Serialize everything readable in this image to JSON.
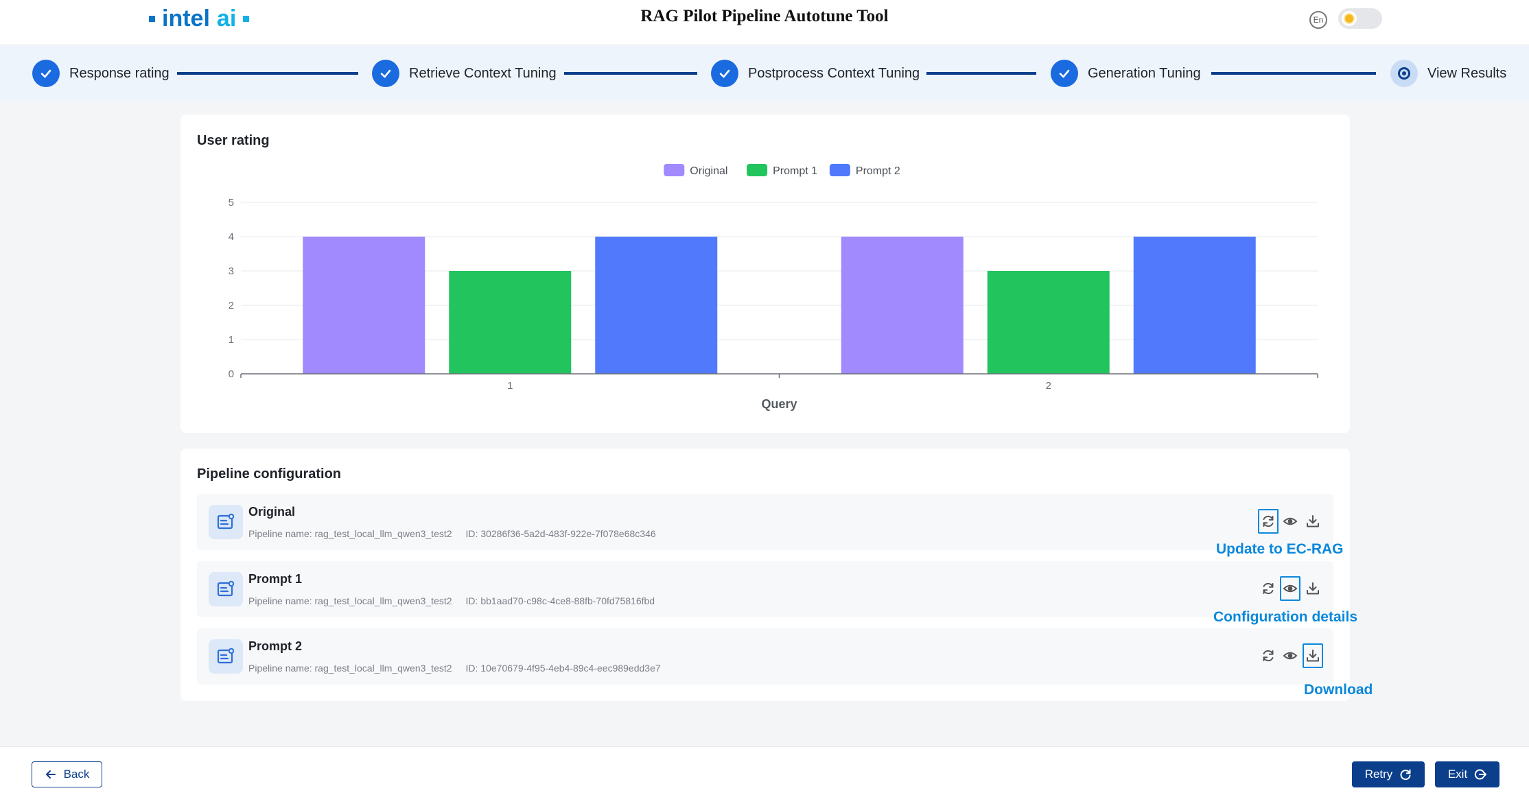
{
  "header": {
    "logo_text_1": "intel",
    "logo_text_2": "ai",
    "title": "RAG Pilot Pipeline Autotune Tool",
    "lang_label": "En"
  },
  "stepper": {
    "steps": [
      {
        "label": "Response rating",
        "status": "done"
      },
      {
        "label": "Retrieve Context Tuning",
        "status": "done"
      },
      {
        "label": "Postprocess Context Tuning",
        "status": "done"
      },
      {
        "label": "Generation Tuning",
        "status": "done"
      },
      {
        "label": "View Results",
        "status": "current"
      }
    ]
  },
  "rating_card": {
    "title": "User rating"
  },
  "chart_data": {
    "type": "bar",
    "categories": [
      "1",
      "2"
    ],
    "series": [
      {
        "name": "Original",
        "values": [
          4,
          4
        ],
        "color": "#a18afd"
      },
      {
        "name": "Prompt 1",
        "values": [
          3,
          3
        ],
        "color": "#22c45e"
      },
      {
        "name": "Prompt 2",
        "values": [
          4,
          4
        ],
        "color": "#5079fb"
      }
    ],
    "yticks": [
      "0",
      "1",
      "2",
      "3",
      "4",
      "5"
    ],
    "ylim": [
      0,
      5
    ],
    "xlabel": "Query",
    "ylabel": "",
    "grid": true,
    "legend": "top-center"
  },
  "pipeline_card": {
    "title": "Pipeline configuration",
    "name_prefix": "Pipeline name: ",
    "id_prefix": "ID: ",
    "rows": [
      {
        "name": "Original",
        "pipeline_name": "rag_test_local_llm_qwen3_test2",
        "id": "30286f36-5a2d-483f-922e-7f078e68c346"
      },
      {
        "name": "Prompt 1",
        "pipeline_name": "rag_test_local_llm_qwen3_test2",
        "id": "bb1aad70-c98c-4ce8-88fb-70fd75816fbd"
      },
      {
        "name": "Prompt 2",
        "pipeline_name": "rag_test_local_llm_qwen3_test2",
        "id": "10e70679-4f95-4eb4-89c4-eec989edd3e7"
      }
    ]
  },
  "callouts": {
    "update": "Update to EC-RAG",
    "details": "Configuration details",
    "download": "Download"
  },
  "footer": {
    "back_label": "Back",
    "retry_label": "Retry",
    "exit_label": "Exit"
  },
  "colors": {
    "primary": "#0b3f8c",
    "step_done": "#1a6ae0",
    "callout": "#0b88dc"
  }
}
